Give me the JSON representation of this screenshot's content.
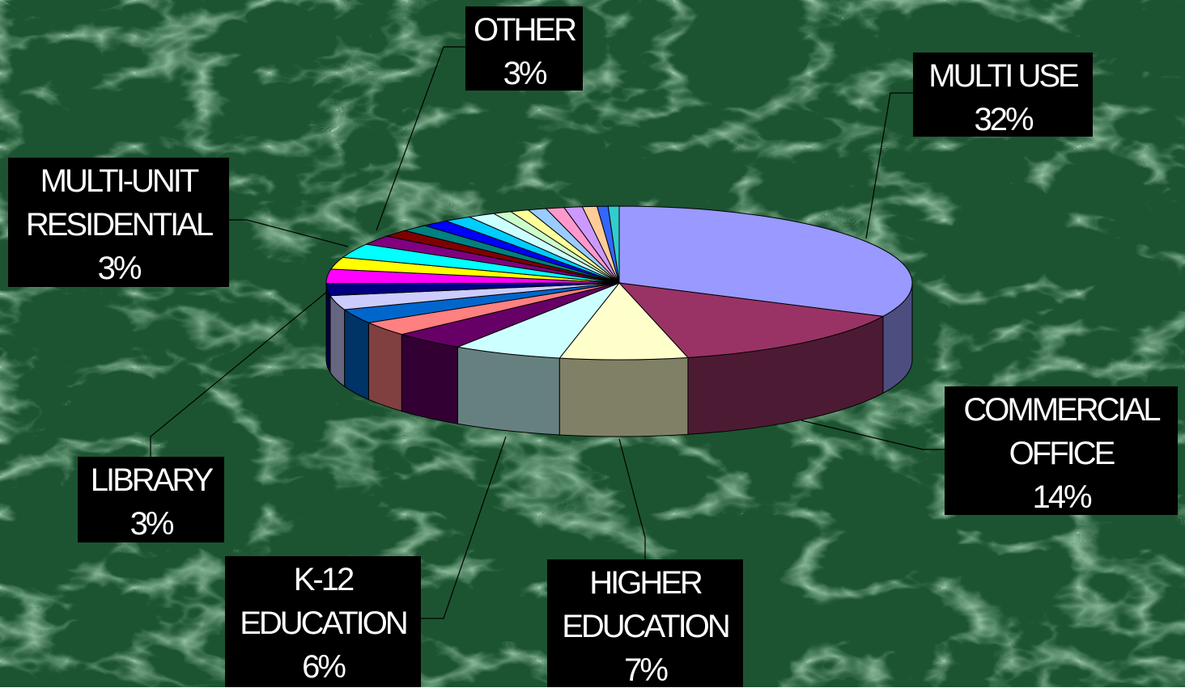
{
  "chart_data": {
    "type": "pie",
    "categories": [
      "MULTI USE",
      "COMMERCIAL OFFICE",
      "HIGHER EDUCATION",
      "K-12 EDUCATION",
      null,
      null,
      null,
      "LIBRARY",
      null,
      "MULTI-UNIT RESIDENTIAL",
      null,
      "OTHER",
      null,
      null,
      null,
      null,
      null,
      null,
      null,
      null,
      null,
      null,
      null,
      null,
      null,
      null
    ],
    "values": [
      32,
      14,
      7,
      6,
      4,
      3,
      3,
      3,
      2.5,
      3,
      2.5,
      3,
      2,
      1.5,
      1.5,
      1.5,
      1.5,
      1.5,
      1,
      1,
      1,
      1,
      1,
      0.8,
      0.6,
      0.6
    ],
    "value_labels": [
      "32%",
      "14%",
      "7%",
      "6%",
      null,
      null,
      null,
      "3%",
      null,
      "3%",
      null,
      "3%",
      null,
      null,
      null,
      null,
      null,
      null,
      null,
      null,
      null,
      null,
      null,
      null,
      null,
      null
    ],
    "colors": [
      "#9999FF",
      "#993366",
      "#FFFFCC",
      "#CCFFFF",
      "#660066",
      "#FF8080",
      "#0066CC",
      "#CCCCFF",
      "#000080",
      "#FF00FF",
      "#FFFF00",
      "#00FFFF",
      "#800080",
      "#800000",
      "#008080",
      "#0000FF",
      "#00CCFF",
      "#CCFFFF",
      "#CCFFCC",
      "#FFFF99",
      "#99CCFF",
      "#FF99CC",
      "#CC99FF",
      "#FFCC99",
      "#3366FF",
      "#33CCCC"
    ]
  }
}
